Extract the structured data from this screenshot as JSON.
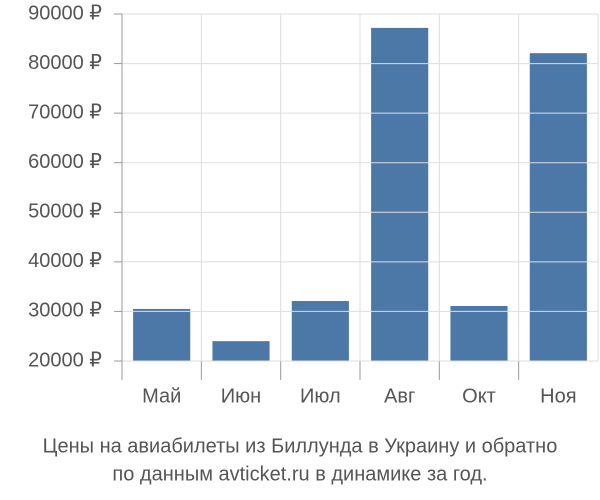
{
  "chart_data": {
    "type": "bar",
    "title": "Цены на авиабилеты из Биллунда в Украину и обратно",
    "subtitle": "по данным avticket.ru в динамике за год.",
    "categories": [
      "Май",
      "Июн",
      "Июл",
      "Авг",
      "Окт",
      "Ноя"
    ],
    "values": [
      30500,
      24000,
      32100,
      87200,
      31100,
      82100
    ],
    "color": "#4c78a8",
    "ylim": [
      20000,
      90000
    ],
    "yticks": [
      {
        "value": 20000,
        "label": "20000 ₽"
      },
      {
        "value": 30000,
        "label": "30000 ₽"
      },
      {
        "value": 40000,
        "label": "40000 ₽"
      },
      {
        "value": 50000,
        "label": "50000 ₽"
      },
      {
        "value": 60000,
        "label": "60000 ₽"
      },
      {
        "value": 70000,
        "label": "70000 ₽"
      },
      {
        "value": 80000,
        "label": "80000 ₽"
      },
      {
        "value": 90000,
        "label": "90000 ₽"
      }
    ],
    "grid": true
  }
}
